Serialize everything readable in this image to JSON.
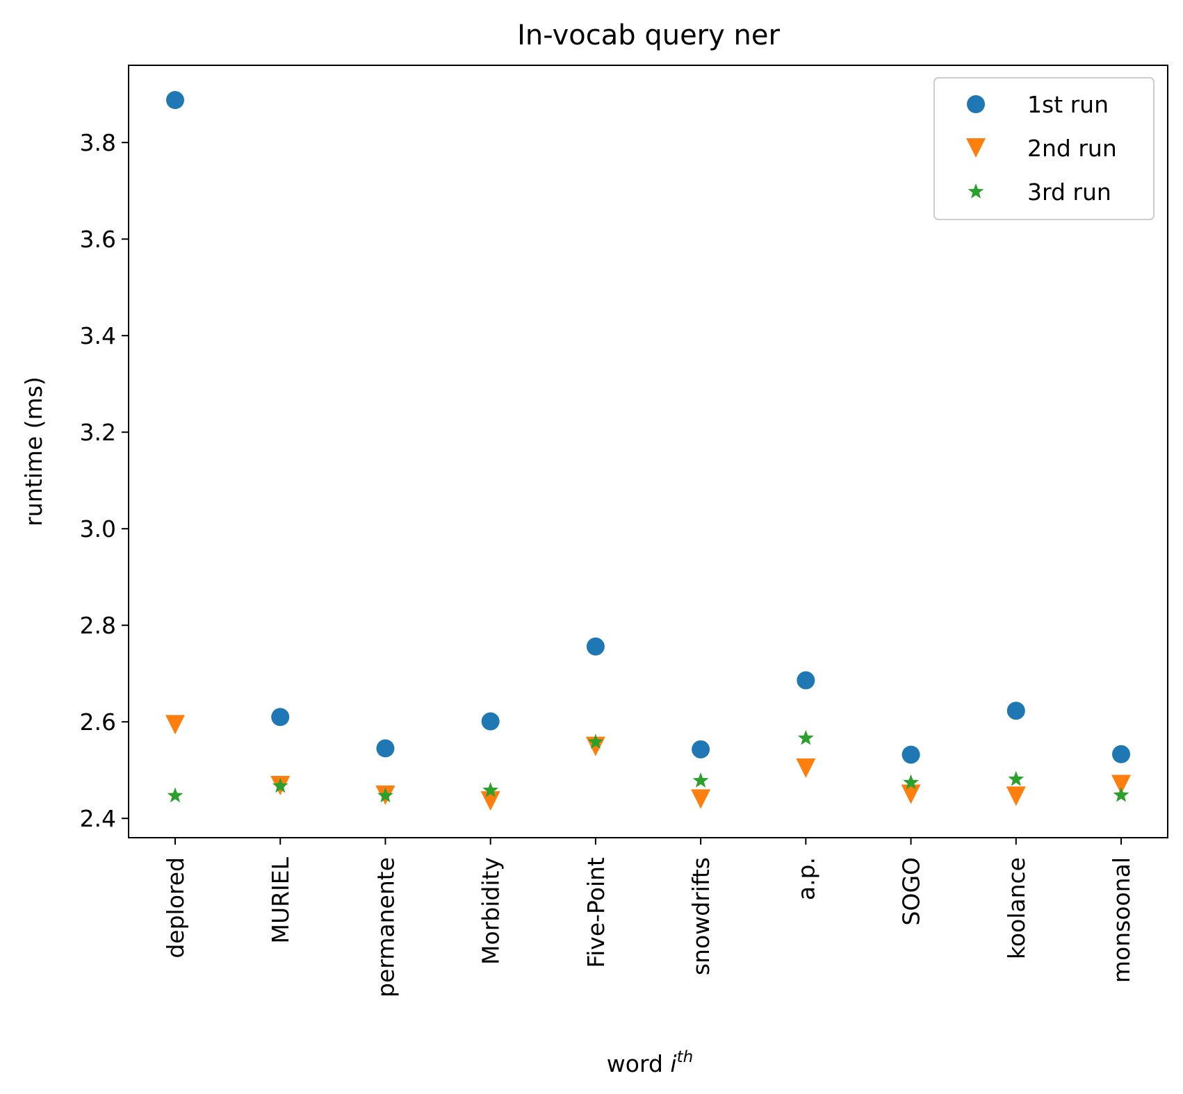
{
  "chart_data": {
    "type": "scatter",
    "title": "In-vocab query ner",
    "xlabel": "word",
    "xlabel_superscript": "th",
    "xlabel_italic": "i",
    "ylabel": "runtime (ms)",
    "categories": [
      "deplored",
      "MURIEL",
      "permanente",
      "Morbidity",
      "Five-Point",
      "snowdrifts",
      "a.p.",
      "SOGO",
      "koolance",
      "monsoonal"
    ],
    "ylim": [
      2.36,
      3.96
    ],
    "yticks": [
      2.4,
      2.6,
      2.8,
      3.0,
      3.2,
      3.4,
      3.6,
      3.8
    ],
    "ytick_labels": [
      "2.4",
      "2.6",
      "2.8",
      "3.0",
      "3.2",
      "3.4",
      "3.6",
      "3.8"
    ],
    "grid": false,
    "legend_position": "top-right",
    "series": [
      {
        "name": "1st run",
        "marker": "circle",
        "color": "#1f77b4",
        "values": [
          3.888,
          2.61,
          2.545,
          2.601,
          2.756,
          2.543,
          2.686,
          2.532,
          2.623,
          2.533
        ]
      },
      {
        "name": "2nd run",
        "marker": "triangle-down",
        "color": "#ff7f0e",
        "values": [
          2.594,
          2.468,
          2.448,
          2.436,
          2.549,
          2.44,
          2.504,
          2.45,
          2.446,
          2.47
        ]
      },
      {
        "name": "3rd run",
        "marker": "star",
        "color": "#2ca02c",
        "values": [
          2.447,
          2.467,
          2.447,
          2.458,
          2.558,
          2.478,
          2.566,
          2.474,
          2.481,
          2.448
        ]
      }
    ]
  }
}
